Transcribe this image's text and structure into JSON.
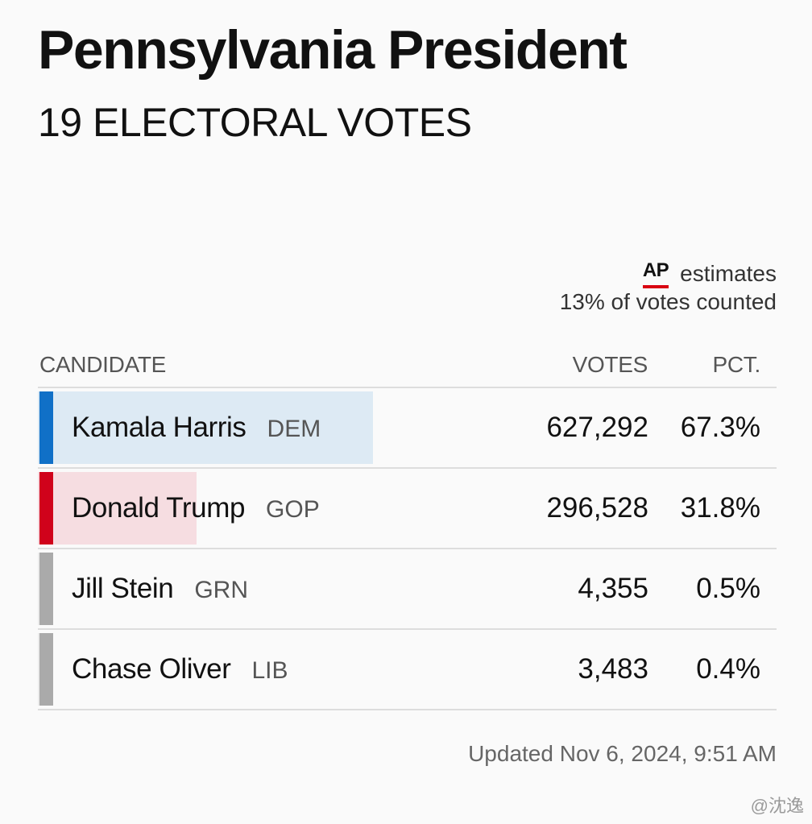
{
  "header": {
    "title": "Pennsylvania President",
    "subtitle": "19 ELECTORAL VOTES"
  },
  "status": {
    "ap_logo": "AP",
    "ap_label": "estimates",
    "counted": "13% of votes counted",
    "updated": "Updated Nov 6, 2024, 9:51 AM"
  },
  "table": {
    "columns": {
      "candidate": "CANDIDATE",
      "votes": "VOTES",
      "pct": "PCT."
    },
    "rows": [
      {
        "name": "Kamala Harris",
        "party": "DEM",
        "votes": "627,292",
        "pct": "67.3%",
        "share": 0.673,
        "color": "#1070c7",
        "fill": "#ddeaf4"
      },
      {
        "name": "Donald Trump",
        "party": "GOP",
        "votes": "296,528",
        "pct": "31.8%",
        "share": 0.318,
        "color": "#d0021b",
        "fill": "#f6dde1"
      },
      {
        "name": "Jill Stein",
        "party": "GRN",
        "votes": "4,355",
        "pct": "0.5%",
        "share": 0.005,
        "color": "#aaaaaa",
        "fill": "#ececec"
      },
      {
        "name": "Chase Oliver",
        "party": "LIB",
        "votes": "3,483",
        "pct": "0.4%",
        "share": 0.004,
        "color": "#aaaaaa",
        "fill": "#ececec"
      }
    ]
  },
  "watermark": "@沈逸"
}
